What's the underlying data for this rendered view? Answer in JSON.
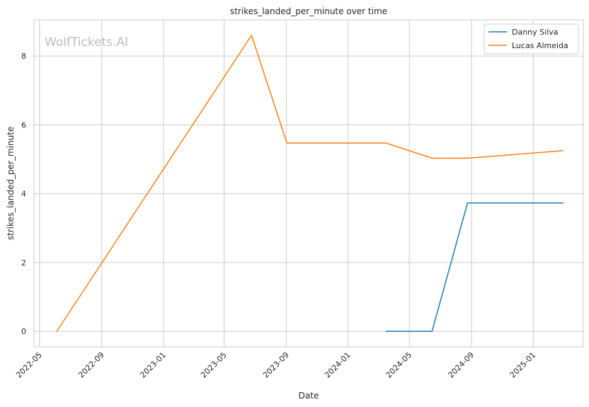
{
  "chart_data": {
    "type": "line",
    "title": "strikes_landed_per_minute over time",
    "xlabel": "Date",
    "ylabel": "strikes_landed_per_minute",
    "watermark": "WolfTickets.AI",
    "grid": true,
    "legend_position": "top-right",
    "x_ticks": [
      "2022-05",
      "2022-09",
      "2023-01",
      "2023-05",
      "2023-09",
      "2024-01",
      "2024-05",
      "2024-09",
      "2025-01"
    ],
    "y_ticks": [
      "0",
      "2",
      "4",
      "6",
      "8"
    ],
    "xlim": [
      "2022-04-20",
      "2025-04-10"
    ],
    "ylim": [
      -0.45,
      9.05
    ],
    "series": [
      {
        "name": "Danny Silva",
        "color": "#1f77b4",
        "x": [
          "2024-03-16",
          "2024-06-15",
          "2024-08-24",
          "2025-03-01"
        ],
        "y": [
          0,
          0,
          3.73,
          3.73
        ]
      },
      {
        "name": "Lucas Almeida",
        "color": "#ff7f0e",
        "x": [
          "2022-06-04",
          "2023-06-24",
          "2023-09-02",
          "2024-03-16",
          "2024-06-15",
          "2024-08-24",
          "2025-03-01"
        ],
        "y": [
          0,
          8.6,
          5.47,
          5.47,
          5.03,
          5.03,
          5.25
        ]
      }
    ]
  }
}
